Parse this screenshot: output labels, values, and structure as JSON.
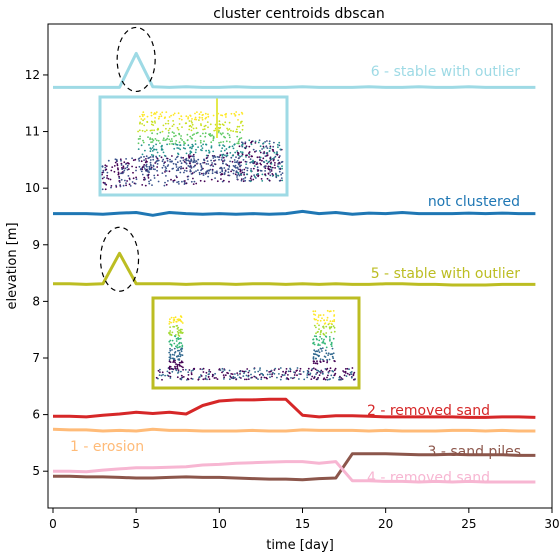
{
  "chart_data": {
    "type": "line",
    "title": "cluster centroids dbscan",
    "xlabel": "time [day]",
    "ylabel": "elevation [m]",
    "xlim": [
      -0.3,
      30
    ],
    "ylim": [
      4.35,
      12.9
    ],
    "xticks": [
      0,
      5,
      10,
      15,
      20,
      25,
      30
    ],
    "yticks": [
      5,
      6,
      7,
      8,
      9,
      10,
      11,
      12
    ],
    "grid": false,
    "x": [
      0,
      1,
      2,
      3,
      4,
      5,
      6,
      7,
      8,
      9,
      10,
      11,
      12,
      13,
      14,
      15,
      16,
      17,
      18,
      19,
      20,
      21,
      22,
      23,
      24,
      25,
      26,
      27,
      28,
      29
    ],
    "series": [
      {
        "name": "6 - stable with outlier",
        "color": "#9edae5",
        "values": [
          11.78,
          11.78,
          11.78,
          11.78,
          11.78,
          12.38,
          11.79,
          11.78,
          11.79,
          11.78,
          11.78,
          11.79,
          11.78,
          11.78,
          11.78,
          11.79,
          11.78,
          11.78,
          11.78,
          11.79,
          11.78,
          11.78,
          11.79,
          11.78,
          11.78,
          11.79,
          11.78,
          11.78,
          11.78,
          11.78
        ]
      },
      {
        "name": "not clustered",
        "color": "#1f77b4",
        "values": [
          9.55,
          9.55,
          9.55,
          9.54,
          9.56,
          9.57,
          9.52,
          9.57,
          9.55,
          9.54,
          9.55,
          9.54,
          9.55,
          9.54,
          9.55,
          9.59,
          9.55,
          9.57,
          9.54,
          9.56,
          9.55,
          9.57,
          9.55,
          9.55,
          9.55,
          9.56,
          9.55,
          9.56,
          9.55,
          9.55
        ]
      },
      {
        "name": "5 - stable with outlier",
        "color": "#bcbd22",
        "values": [
          8.31,
          8.31,
          8.3,
          8.31,
          8.85,
          8.31,
          8.31,
          8.31,
          8.3,
          8.31,
          8.31,
          8.3,
          8.31,
          8.31,
          8.3,
          8.31,
          8.3,
          8.31,
          8.3,
          8.3,
          8.31,
          8.31,
          8.3,
          8.3,
          8.29,
          8.29,
          8.29,
          8.3,
          8.3,
          8.3
        ]
      },
      {
        "name": "2 - removed sand",
        "color": "#d62728",
        "values": [
          5.97,
          5.97,
          5.96,
          5.99,
          6.01,
          6.04,
          6.02,
          6.04,
          6.01,
          6.16,
          6.24,
          6.26,
          6.26,
          6.27,
          6.27,
          5.99,
          5.96,
          5.98,
          5.98,
          5.97,
          5.96,
          5.96,
          5.96,
          5.96,
          5.96,
          5.95,
          5.95,
          5.96,
          5.96,
          5.95
        ]
      },
      {
        "name": "1 - erosion",
        "color": "#ffbb78",
        "values": [
          5.74,
          5.73,
          5.73,
          5.71,
          5.72,
          5.71,
          5.74,
          5.72,
          5.72,
          5.71,
          5.71,
          5.71,
          5.72,
          5.71,
          5.71,
          5.73,
          5.72,
          5.72,
          5.72,
          5.71,
          5.72,
          5.71,
          5.71,
          5.71,
          5.72,
          5.72,
          5.71,
          5.72,
          5.71,
          5.71
        ]
      },
      {
        "name": "3 - sand piles",
        "color": "#8c564b",
        "values": [
          4.91,
          4.91,
          4.9,
          4.9,
          4.89,
          4.88,
          4.88,
          4.89,
          4.9,
          4.89,
          4.89,
          4.88,
          4.87,
          4.86,
          4.86,
          4.85,
          4.87,
          4.88,
          5.31,
          5.31,
          5.31,
          5.3,
          5.29,
          5.29,
          5.3,
          5.29,
          5.29,
          5.29,
          5.28,
          5.28
        ]
      },
      {
        "name": "4 - removed sand",
        "color": "#f7b6d2",
        "values": [
          5.0,
          5.0,
          4.99,
          5.02,
          5.04,
          5.06,
          5.06,
          5.07,
          5.08,
          5.11,
          5.12,
          5.14,
          5.15,
          5.16,
          5.17,
          5.17,
          5.14,
          5.17,
          4.83,
          4.83,
          4.82,
          4.82,
          4.81,
          4.82,
          4.81,
          4.82,
          4.81,
          4.81,
          4.81,
          4.81
        ]
      }
    ],
    "annotations": [
      {
        "type": "dashed-ellipse",
        "target": "6 - stable with outlier",
        "x": 5,
        "y": 12.38
      },
      {
        "type": "dashed-ellipse",
        "target": "5 - stable with outlier",
        "x": 4,
        "y": 8.85
      },
      {
        "type": "inset-image",
        "description": "point cloud",
        "border_color": "#9edae5"
      },
      {
        "type": "inset-image",
        "description": "point cloud",
        "border_color": "#bcbd22"
      }
    ]
  }
}
